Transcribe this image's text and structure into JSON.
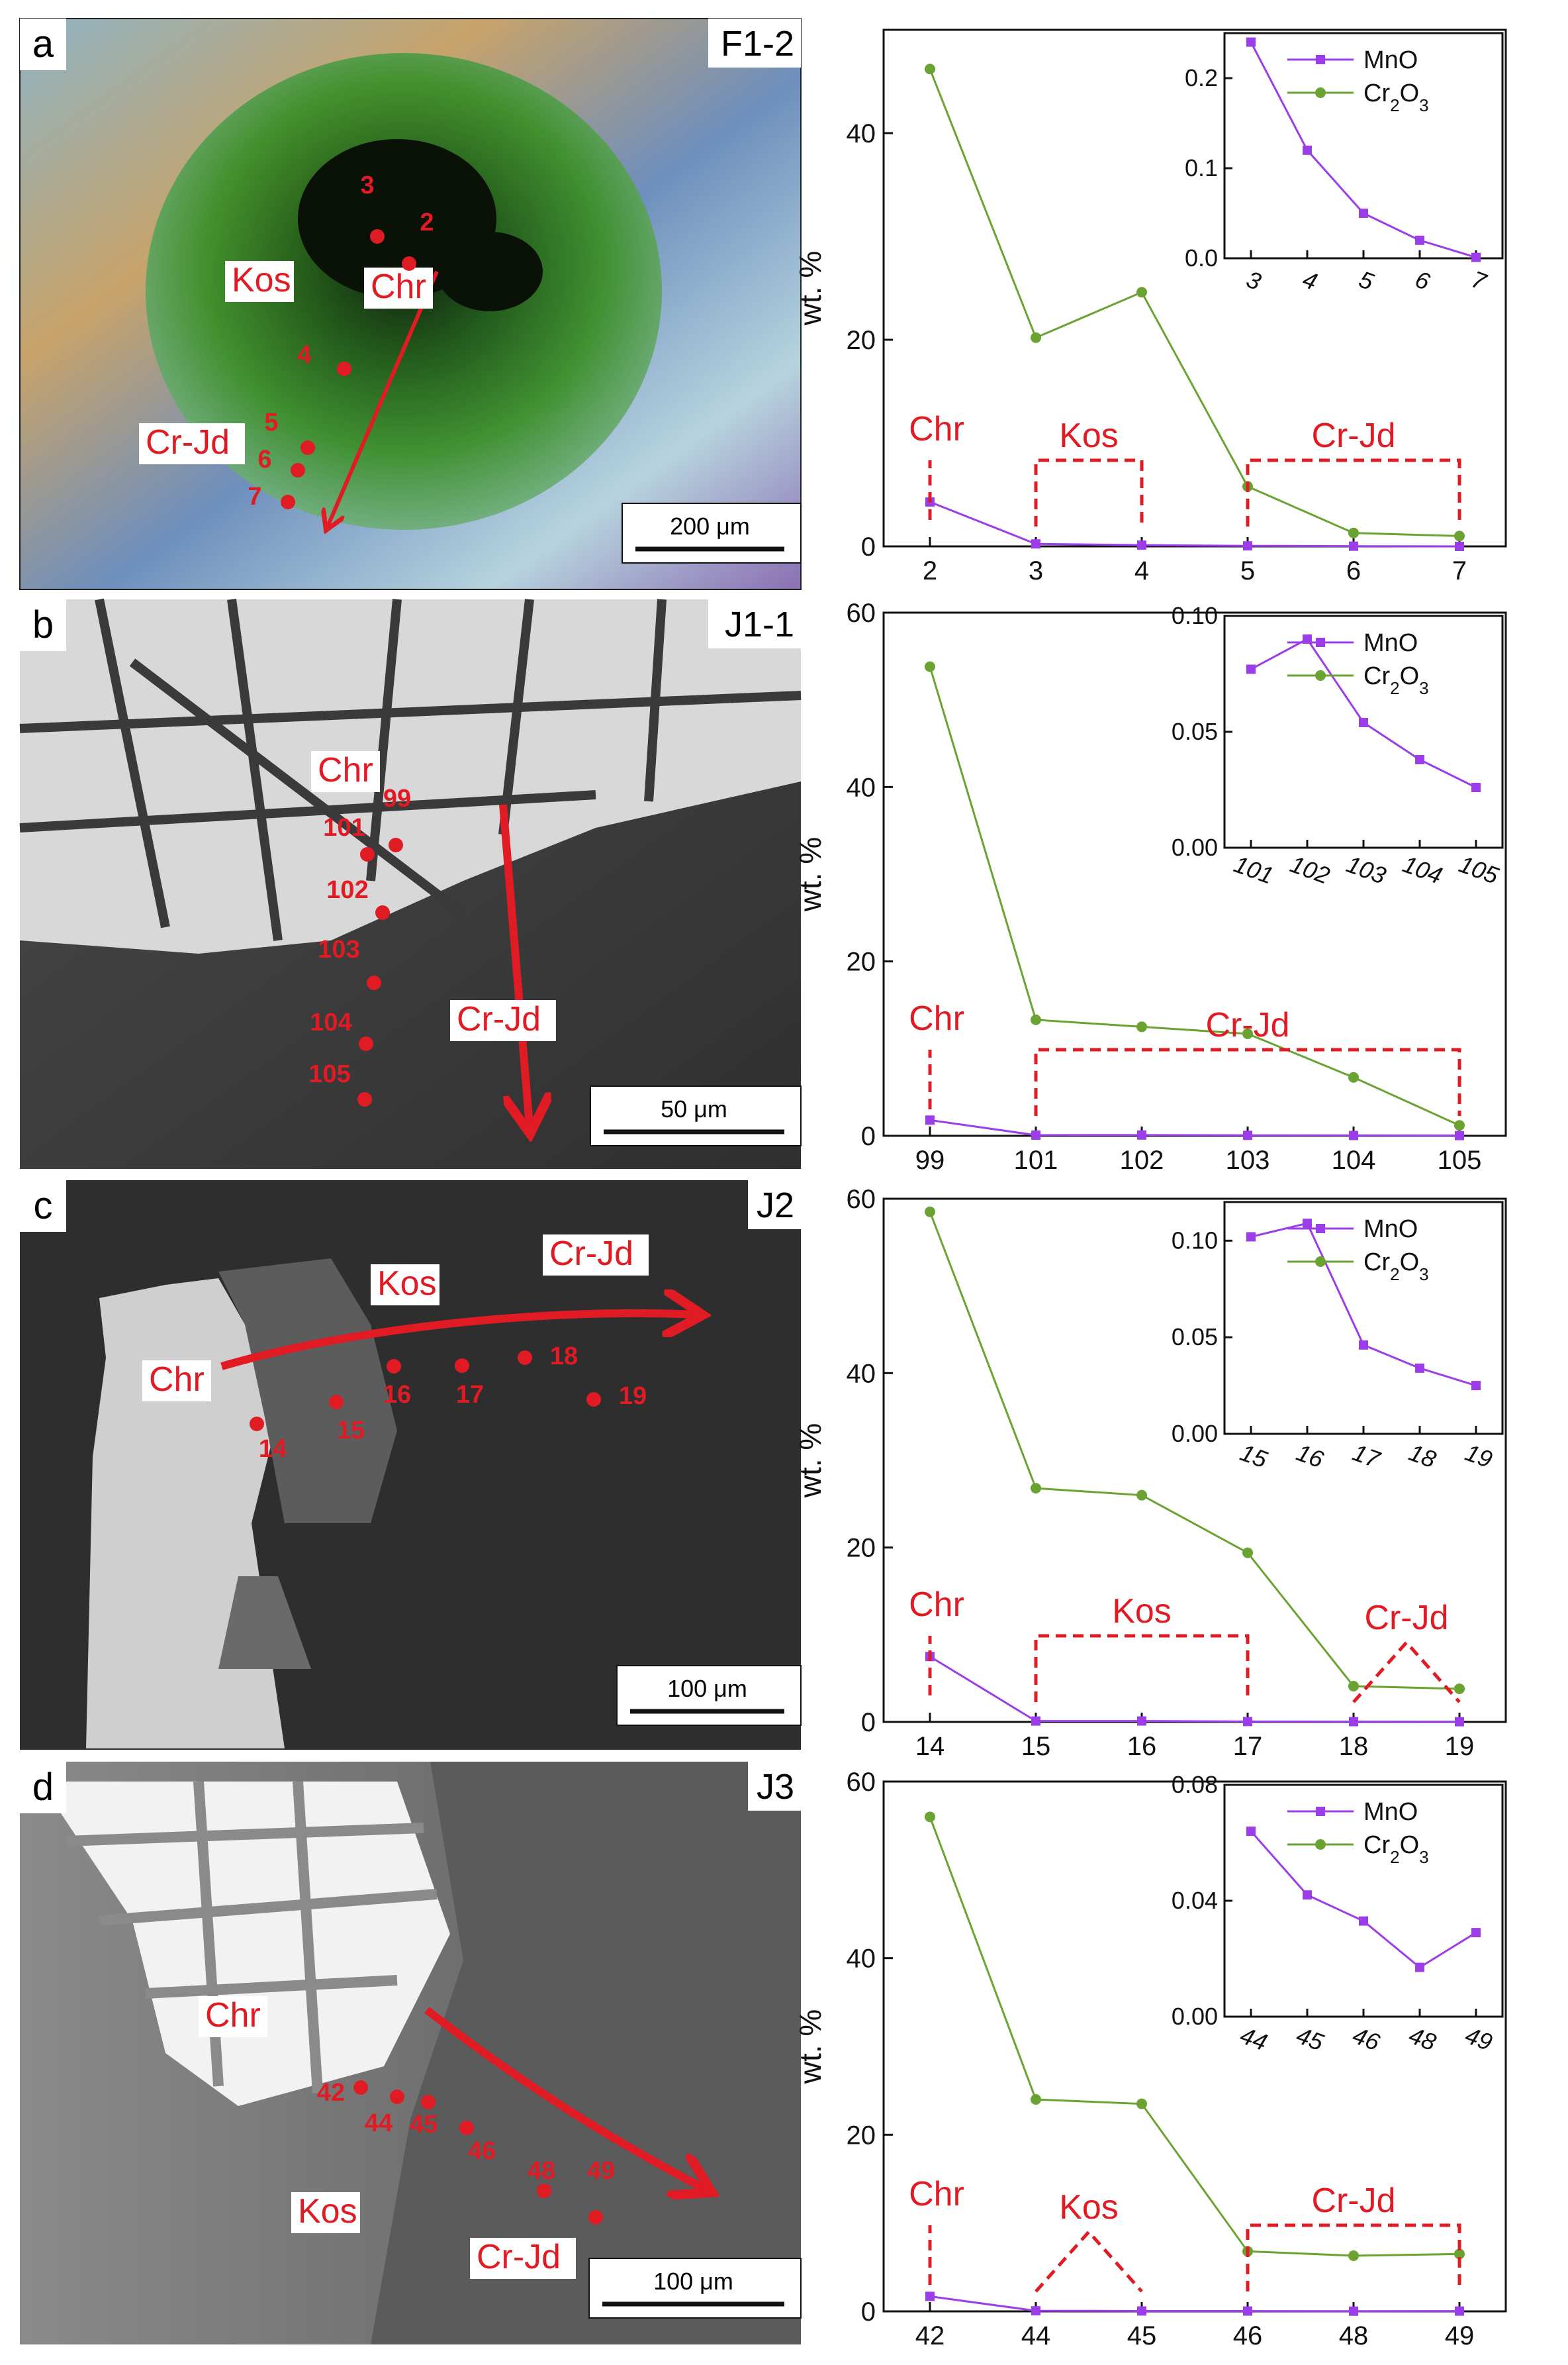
{
  "colors": {
    "mno": "#9b3de8",
    "cr2o3": "#6aa332",
    "annotation": "#e01b24"
  },
  "panels": [
    {
      "letter": "a",
      "sample": "F1-2",
      "scale": "200 μm",
      "minerals": [
        "Kos",
        "Chr",
        "Cr-Jd"
      ],
      "points": [
        "3",
        "2",
        "4",
        "5",
        "6",
        "7"
      ]
    },
    {
      "letter": "b",
      "sample": "J1-1",
      "scale": "50 μm",
      "minerals": [
        "Chr",
        "Cr-Jd"
      ],
      "points": [
        "99",
        "101",
        "102",
        "103",
        "104",
        "105"
      ]
    },
    {
      "letter": "c",
      "sample": "J2",
      "scale": "100 μm",
      "minerals": [
        "Kos",
        "Cr-Jd",
        "Chr"
      ],
      "points": [
        "14",
        "15",
        "16",
        "17",
        "18",
        "19"
      ]
    },
    {
      "letter": "d",
      "sample": "J3",
      "scale": "100 μm",
      "minerals": [
        "Chr",
        "Kos",
        "Cr-Jd"
      ],
      "points": [
        "42",
        "44",
        "45",
        "46",
        "48",
        "49"
      ]
    }
  ],
  "chart_data": [
    {
      "type": "line",
      "ylabel": "wt. %",
      "categories": [
        "2",
        "3",
        "4",
        "5",
        "6",
        "7"
      ],
      "ylim": [
        0,
        50
      ],
      "yticks": [
        "0",
        "20",
        "40"
      ],
      "series": [
        {
          "name": "MnO",
          "values": [
            4.3,
            0.24,
            0.12,
            0.05,
            0.02,
            0.001
          ]
        },
        {
          "name": "Cr2O3",
          "values": [
            46.2,
            20.2,
            24.6,
            5.8,
            1.3,
            1.0
          ]
        }
      ],
      "brackets": [
        {
          "label": "Chr",
          "type": "single",
          "at": 0
        },
        {
          "label": "Kos",
          "type": "range",
          "from": 1,
          "to": 2
        },
        {
          "label": "Cr-Jd",
          "type": "range",
          "from": 3,
          "to": 5
        }
      ],
      "inset": {
        "categories": [
          "3",
          "4",
          "5",
          "6",
          "7"
        ],
        "values": [
          0.24,
          0.12,
          0.05,
          0.02,
          0.001
        ],
        "ylim": [
          0,
          0.25
        ],
        "yticks": [
          "0.0",
          "0.1",
          "0.2"
        ],
        "legend": [
          "MnO",
          "Cr2O3"
        ]
      }
    },
    {
      "type": "line",
      "ylabel": "wt. %",
      "categories": [
        "99",
        "101",
        "102",
        "103",
        "104",
        "105"
      ],
      "ylim": [
        0,
        60
      ],
      "yticks": [
        "0",
        "20",
        "40",
        "60"
      ],
      "series": [
        {
          "name": "MnO",
          "values": [
            1.8,
            0.077,
            0.09,
            0.054,
            0.038,
            0.026
          ]
        },
        {
          "name": "Cr2O3",
          "values": [
            53.8,
            13.3,
            12.5,
            11.7,
            6.7,
            1.2
          ]
        }
      ],
      "brackets": [
        {
          "label": "Chr",
          "type": "single",
          "at": 0
        },
        {
          "label": "Cr-Jd",
          "type": "range",
          "from": 1,
          "to": 5
        }
      ],
      "inset": {
        "categories": [
          "101",
          "102",
          "103",
          "104",
          "105"
        ],
        "values": [
          0.077,
          0.09,
          0.054,
          0.038,
          0.026
        ],
        "ylim": [
          0,
          0.1
        ],
        "yticks": [
          "0.00",
          "0.05",
          "0.10"
        ],
        "legend": [
          "MnO",
          "Cr2O3"
        ]
      }
    },
    {
      "type": "line",
      "ylabel": "wt. %",
      "categories": [
        "14",
        "15",
        "16",
        "17",
        "18",
        "19"
      ],
      "ylim": [
        0,
        60
      ],
      "yticks": [
        "0",
        "20",
        "40",
        "60"
      ],
      "series": [
        {
          "name": "MnO",
          "values": [
            7.5,
            0.102,
            0.109,
            0.046,
            0.034,
            0.025
          ]
        },
        {
          "name": "Cr2O3",
          "values": [
            58.5,
            26.8,
            26.0,
            19.4,
            4.1,
            3.8
          ]
        }
      ],
      "brackets": [
        {
          "label": "Chr",
          "type": "single",
          "at": 0
        },
        {
          "label": "Kos",
          "type": "range",
          "from": 1,
          "to": 3
        },
        {
          "label": "Cr-Jd",
          "type": "peak",
          "from": 4,
          "to": 5
        }
      ],
      "inset": {
        "categories": [
          "15",
          "16",
          "17",
          "18",
          "19"
        ],
        "values": [
          0.102,
          0.109,
          0.046,
          0.034,
          0.025
        ],
        "ylim": [
          0,
          0.12
        ],
        "yticks": [
          "0.00",
          "0.05",
          "0.10"
        ],
        "legend": [
          "MnO",
          "Cr2O3"
        ]
      }
    },
    {
      "type": "line",
      "ylabel": "wt. %",
      "categories": [
        "42",
        "44",
        "45",
        "46",
        "48",
        "49"
      ],
      "ylim": [
        0,
        60
      ],
      "yticks": [
        "0",
        "20",
        "40",
        "60"
      ],
      "series": [
        {
          "name": "MnO",
          "values": [
            1.7,
            0.064,
            0.042,
            0.033,
            0.017,
            0.029
          ]
        },
        {
          "name": "Cr2O3",
          "values": [
            56.0,
            24.0,
            23.5,
            6.8,
            6.3,
            6.5
          ]
        }
      ],
      "brackets": [
        {
          "label": "Chr",
          "type": "single",
          "at": 0
        },
        {
          "label": "Kos",
          "type": "peak",
          "from": 1,
          "to": 2
        },
        {
          "label": "Cr-Jd",
          "type": "range",
          "from": 3,
          "to": 5
        }
      ],
      "inset": {
        "categories": [
          "44",
          "45",
          "46",
          "48",
          "49"
        ],
        "values": [
          0.064,
          0.042,
          0.033,
          0.017,
          0.029
        ],
        "ylim": [
          0,
          0.08
        ],
        "yticks": [
          "0.00",
          "0.04",
          "0.08"
        ],
        "legend": [
          "MnO",
          "Cr2O3"
        ]
      }
    }
  ]
}
